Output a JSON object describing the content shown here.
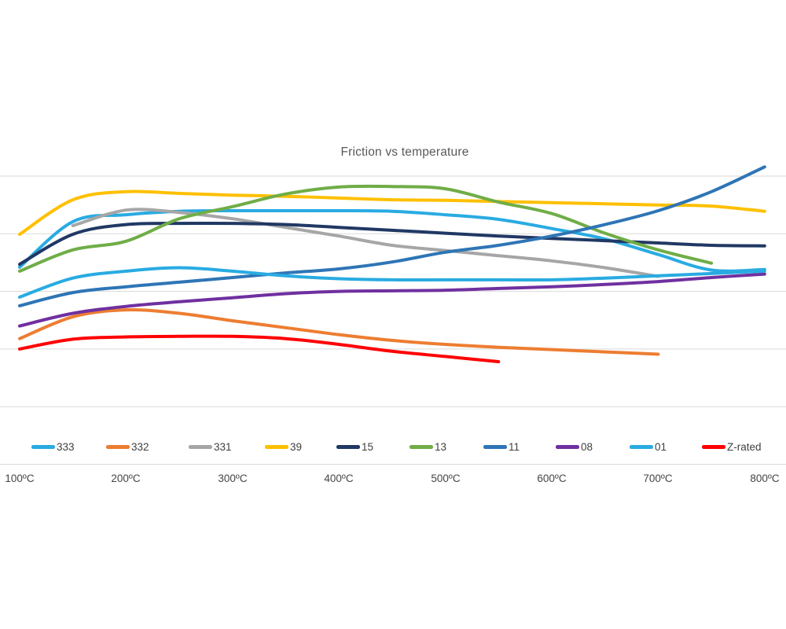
{
  "chart_data": {
    "type": "line",
    "title": "Friction vs temperature",
    "x_tick_labels": [
      "100ºC",
      "200ºC",
      "300ºC",
      "400ºC",
      "500ºC",
      "600ºC",
      "700ºC",
      "800ºC"
    ],
    "x_ticks": [
      100,
      200,
      300,
      400,
      500,
      600,
      700,
      800
    ],
    "x_unit": "ºC",
    "x_range": [
      100,
      800
    ],
    "x_point_step": 50,
    "grid": true,
    "gridline_color": "#D9D9D9",
    "axis_line_color": "#D9D9D9",
    "title_color": "#595959",
    "label_color": "#444444",
    "y_axis": {
      "tick_labels_visible": false,
      "units": "relative friction (axis unlabeled, measured in gridline units)",
      "ylim": [
        0,
        5
      ],
      "gridline_count": 6
    },
    "legend_position": "bottom",
    "series": [
      {
        "name": "333",
        "color": "#29ABE2",
        "x_start": 100,
        "values": [
          3.42,
          4.21,
          4.33,
          4.39,
          4.4,
          4.4,
          4.4,
          4.39,
          4.33,
          4.25,
          4.09,
          3.91,
          3.64,
          3.37,
          3.38
        ]
      },
      {
        "name": "332",
        "color": "#ED7D31",
        "x_start": 100,
        "values": [
          2.18,
          2.56,
          2.68,
          2.62,
          2.49,
          2.37,
          2.25,
          2.15,
          2.08,
          2.03,
          1.99,
          1.95,
          1.91
        ]
      },
      {
        "name": "331",
        "color": "#A6A6A6",
        "x_start": 150,
        "values": [
          4.14,
          4.41,
          4.37,
          4.26,
          4.11,
          3.96,
          3.8,
          3.71,
          3.62,
          3.53,
          3.41,
          3.26
        ]
      },
      {
        "name": "39",
        "color": "#FFC000",
        "x_start": 100,
        "values": [
          3.99,
          4.59,
          4.73,
          4.7,
          4.67,
          4.65,
          4.62,
          4.59,
          4.58,
          4.56,
          4.54,
          4.52,
          4.5,
          4.48,
          4.39
        ]
      },
      {
        "name": "15",
        "color": "#203864",
        "x_start": 100,
        "values": [
          3.47,
          3.99,
          4.16,
          4.18,
          4.18,
          4.16,
          4.11,
          4.06,
          4.01,
          3.96,
          3.92,
          3.88,
          3.84,
          3.8,
          3.79
        ]
      },
      {
        "name": "13",
        "color": "#70AD47",
        "x_start": 100,
        "values": [
          3.35,
          3.72,
          3.87,
          4.26,
          4.47,
          4.69,
          4.81,
          4.82,
          4.78,
          4.55,
          4.35,
          4.01,
          3.72,
          3.49
        ]
      },
      {
        "name": "11",
        "color": "#2E75B6",
        "x_start": 100,
        "values": [
          2.75,
          2.98,
          3.08,
          3.16,
          3.24,
          3.32,
          3.39,
          3.51,
          3.68,
          3.8,
          3.96,
          4.16,
          4.4,
          4.73,
          5.16
        ]
      },
      {
        "name": "08",
        "color": "#7030A0",
        "x_start": 100,
        "values": [
          2.4,
          2.62,
          2.74,
          2.82,
          2.89,
          2.96,
          3.0,
          3.01,
          3.02,
          3.05,
          3.08,
          3.12,
          3.17,
          3.24,
          3.3
        ]
      },
      {
        "name": "01",
        "color": "#29ABE2",
        "x_start": 100,
        "values": [
          2.9,
          3.23,
          3.35,
          3.41,
          3.35,
          3.27,
          3.22,
          3.2,
          3.2,
          3.2,
          3.2,
          3.23,
          3.27,
          3.31,
          3.35
        ]
      },
      {
        "name": "Z-rated",
        "color": "#FF0000",
        "x_start": 100,
        "values": [
          2.0,
          2.17,
          2.21,
          2.22,
          2.22,
          2.18,
          2.08,
          1.96,
          1.87,
          1.78
        ]
      }
    ]
  }
}
